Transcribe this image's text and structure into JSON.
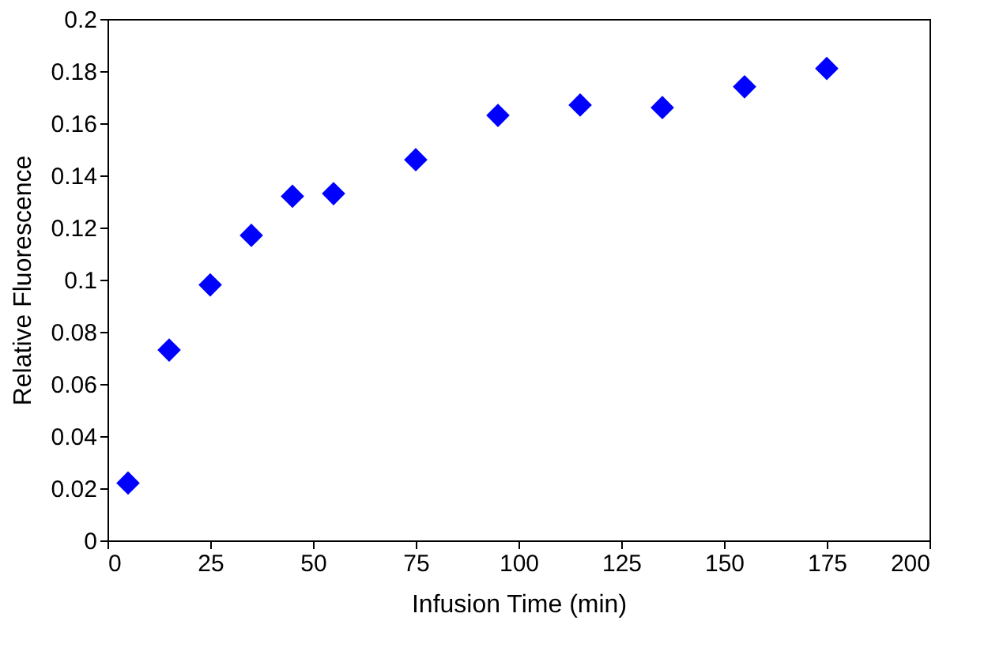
{
  "chart_data": {
    "type": "scatter",
    "xlabel": "Infusion Time (min)",
    "ylabel": "Relative Fluorescence",
    "x": [
      5,
      15,
      25,
      35,
      45,
      55,
      75,
      95,
      115,
      135,
      155,
      175
    ],
    "series": [
      {
        "color": "#0000ff",
        "values": [
          0.022,
          0.073,
          0.098,
          0.117,
          0.132,
          0.133,
          0.146,
          0.163,
          0.167,
          0.166,
          0.174,
          0.181
        ]
      }
    ],
    "xlim": [
      0,
      200
    ],
    "xticks": [
      0,
      25,
      50,
      75,
      100,
      125,
      150,
      175,
      200
    ],
    "ylim": [
      0,
      0.2
    ],
    "yticks": [
      0,
      0.02,
      0.04,
      0.06,
      0.08,
      0.1,
      0.12,
      0.14,
      0.16,
      0.18,
      0.2
    ],
    "marker": "diamond",
    "grid": false
  }
}
